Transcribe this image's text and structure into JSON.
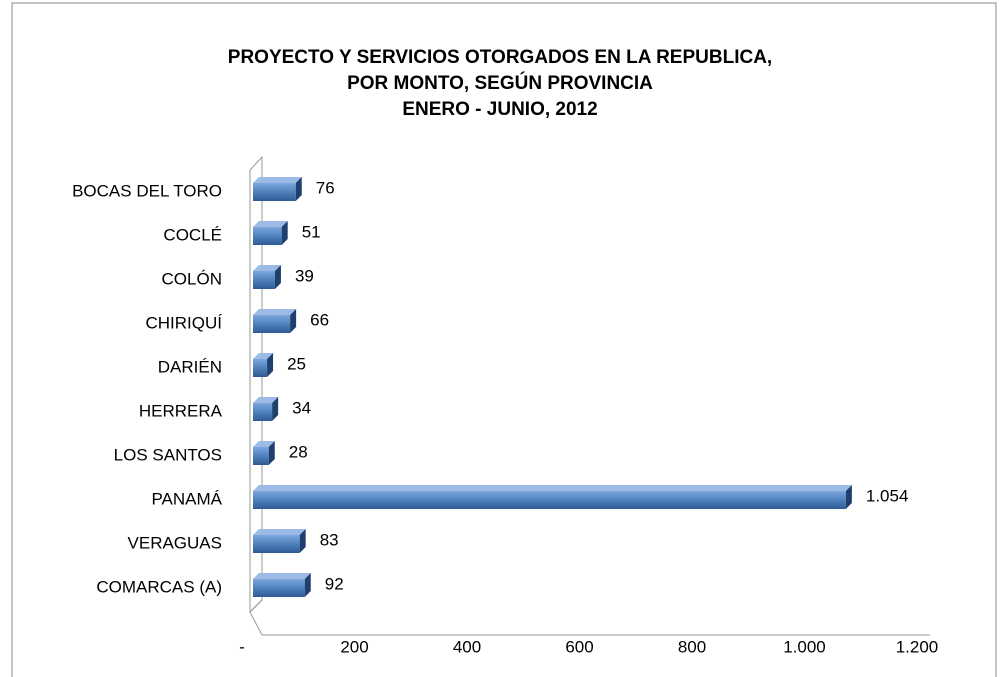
{
  "chart_data": {
    "type": "bar",
    "orientation": "horizontal",
    "title": [
      "PROYECTO  Y SERVICIOS OTORGADOS  EN LA REPUBLICA,",
      "POR MONTO, SEGÚN PROVINCIA",
      "ENERO - JUNIO, 2012"
    ],
    "categories": [
      "BOCAS DEL TORO",
      "COCLÉ",
      "COLÓN",
      "CHIRIQUÍ",
      "DARIÉN",
      "HERRERA",
      "LOS SANTOS",
      "PANAMÁ",
      "VERAGUAS",
      "COMARCAS (A)"
    ],
    "values": [
      76,
      51,
      39,
      66,
      25,
      34,
      28,
      1054,
      83,
      92
    ],
    "value_labels": [
      "76",
      "51",
      "39",
      "66",
      "25",
      "34",
      "28",
      "1.054",
      "83",
      "92"
    ],
    "color": "#4f81bd",
    "xlim": [
      0,
      1200
    ],
    "xticks": [
      {
        "value": 0,
        "label": "-"
      },
      200,
      400,
      600,
      800,
      {
        "value": 1000,
        "label": "1.000"
      },
      {
        "value": 1200,
        "label": "1.200"
      }
    ]
  }
}
